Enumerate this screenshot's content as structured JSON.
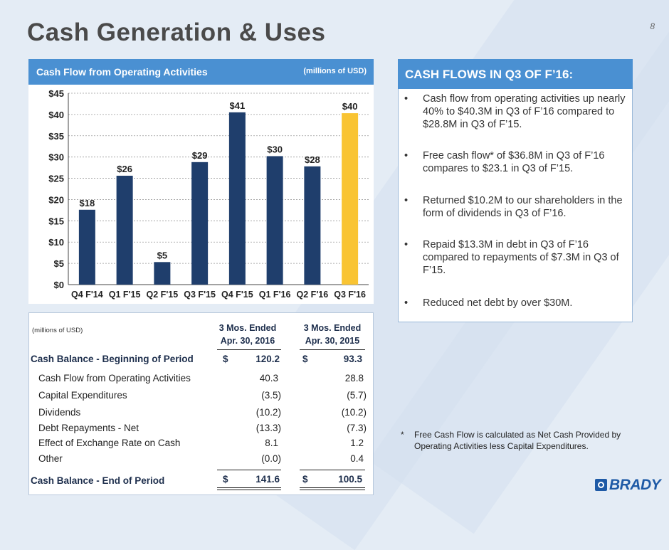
{
  "page": {
    "title": "Cash Generation & Uses",
    "page_number": "8"
  },
  "chart_panel": {
    "title": "Cash Flow from Operating Activities",
    "units": "(millions of USD)"
  },
  "chart_data": {
    "type": "bar",
    "title": "Cash Flow from Operating Activities",
    "categories": [
      "Q4 F'14",
      "Q1 F'15",
      "Q2 F'15",
      "Q3 F'15",
      "Q4 F'15",
      "Q1 F'16",
      "Q2 F'16",
      "Q3 F'16"
    ],
    "values": [
      17.6,
      25.6,
      5.3,
      28.8,
      40.5,
      30.2,
      27.8,
      40.3
    ],
    "labels": [
      "$18",
      "$26",
      "$5",
      "$29",
      "$41",
      "$30",
      "$28",
      "$40"
    ],
    "colors": [
      "#1f3e6c",
      "#1f3e6c",
      "#1f3e6c",
      "#1f3e6c",
      "#1f3e6c",
      "#1f3e6c",
      "#1f3e6c",
      "#f9c433"
    ],
    "yticks": [
      "$0",
      "$5",
      "$10",
      "$15",
      "$20",
      "$25",
      "$30",
      "$35",
      "$40",
      "$45"
    ],
    "ylim": [
      0,
      45
    ],
    "ylabel": "",
    "xlabel": "",
    "grid": true
  },
  "cash_flows": {
    "heading": "CASH FLOWS IN Q3 OF F’16:",
    "bullet": "•",
    "items": [
      "Cash flow from operating activities up nearly 40% to $40.3M in Q3 of F’16 compared to $28.8M in Q3 of F’15.",
      "Free cash flow* of $36.8M in Q3 of F’16 compares to $23.1 in Q3 of F’15.",
      "Returned $10.2M to our shareholders in the form of dividends in Q3 of F’16.",
      "Repaid $13.3M in debt in Q3 of F’16 compared to repayments of $7.3M in Q3 of F’15.",
      "Reduced net debt by over $30M."
    ]
  },
  "footnote": {
    "star": "*",
    "text": "Free Cash Flow is calculated as Net Cash Provided by Operating Activities less Capital Expenditures."
  },
  "table": {
    "units": "(millions of USD)",
    "col1": "3 Mos. Ended Apr. 30, 2016",
    "col2": "3 Mos. Ended Apr. 30, 2015",
    "currency": "$",
    "begin": {
      "label": "Cash Balance - Beginning of Period",
      "v1": "120.2",
      "v2": "93.3"
    },
    "rows": [
      {
        "label": "Cash Flow from Operating Activities",
        "v1": "40.3",
        "v2": "28.8"
      },
      {
        "label": "Capital Expenditures",
        "v1": "(3.5)",
        "v2": "(5.7)"
      },
      {
        "label": "Dividends",
        "v1": "(10.2)",
        "v2": "(10.2)"
      },
      {
        "label": "Debt Repayments - Net",
        "v1": "(13.3)",
        "v2": "(7.3)"
      },
      {
        "label": "Effect of Exchange Rate on Cash",
        "v1": "8.1",
        "v2": "1.2"
      },
      {
        "label": "Other",
        "v1": "(0.0)",
        "v2": "0.4"
      }
    ],
    "end": {
      "label": "Cash Balance - End of Period",
      "v1": "141.6",
      "v2": "100.5"
    }
  },
  "logo": {
    "text": "BRADY"
  }
}
